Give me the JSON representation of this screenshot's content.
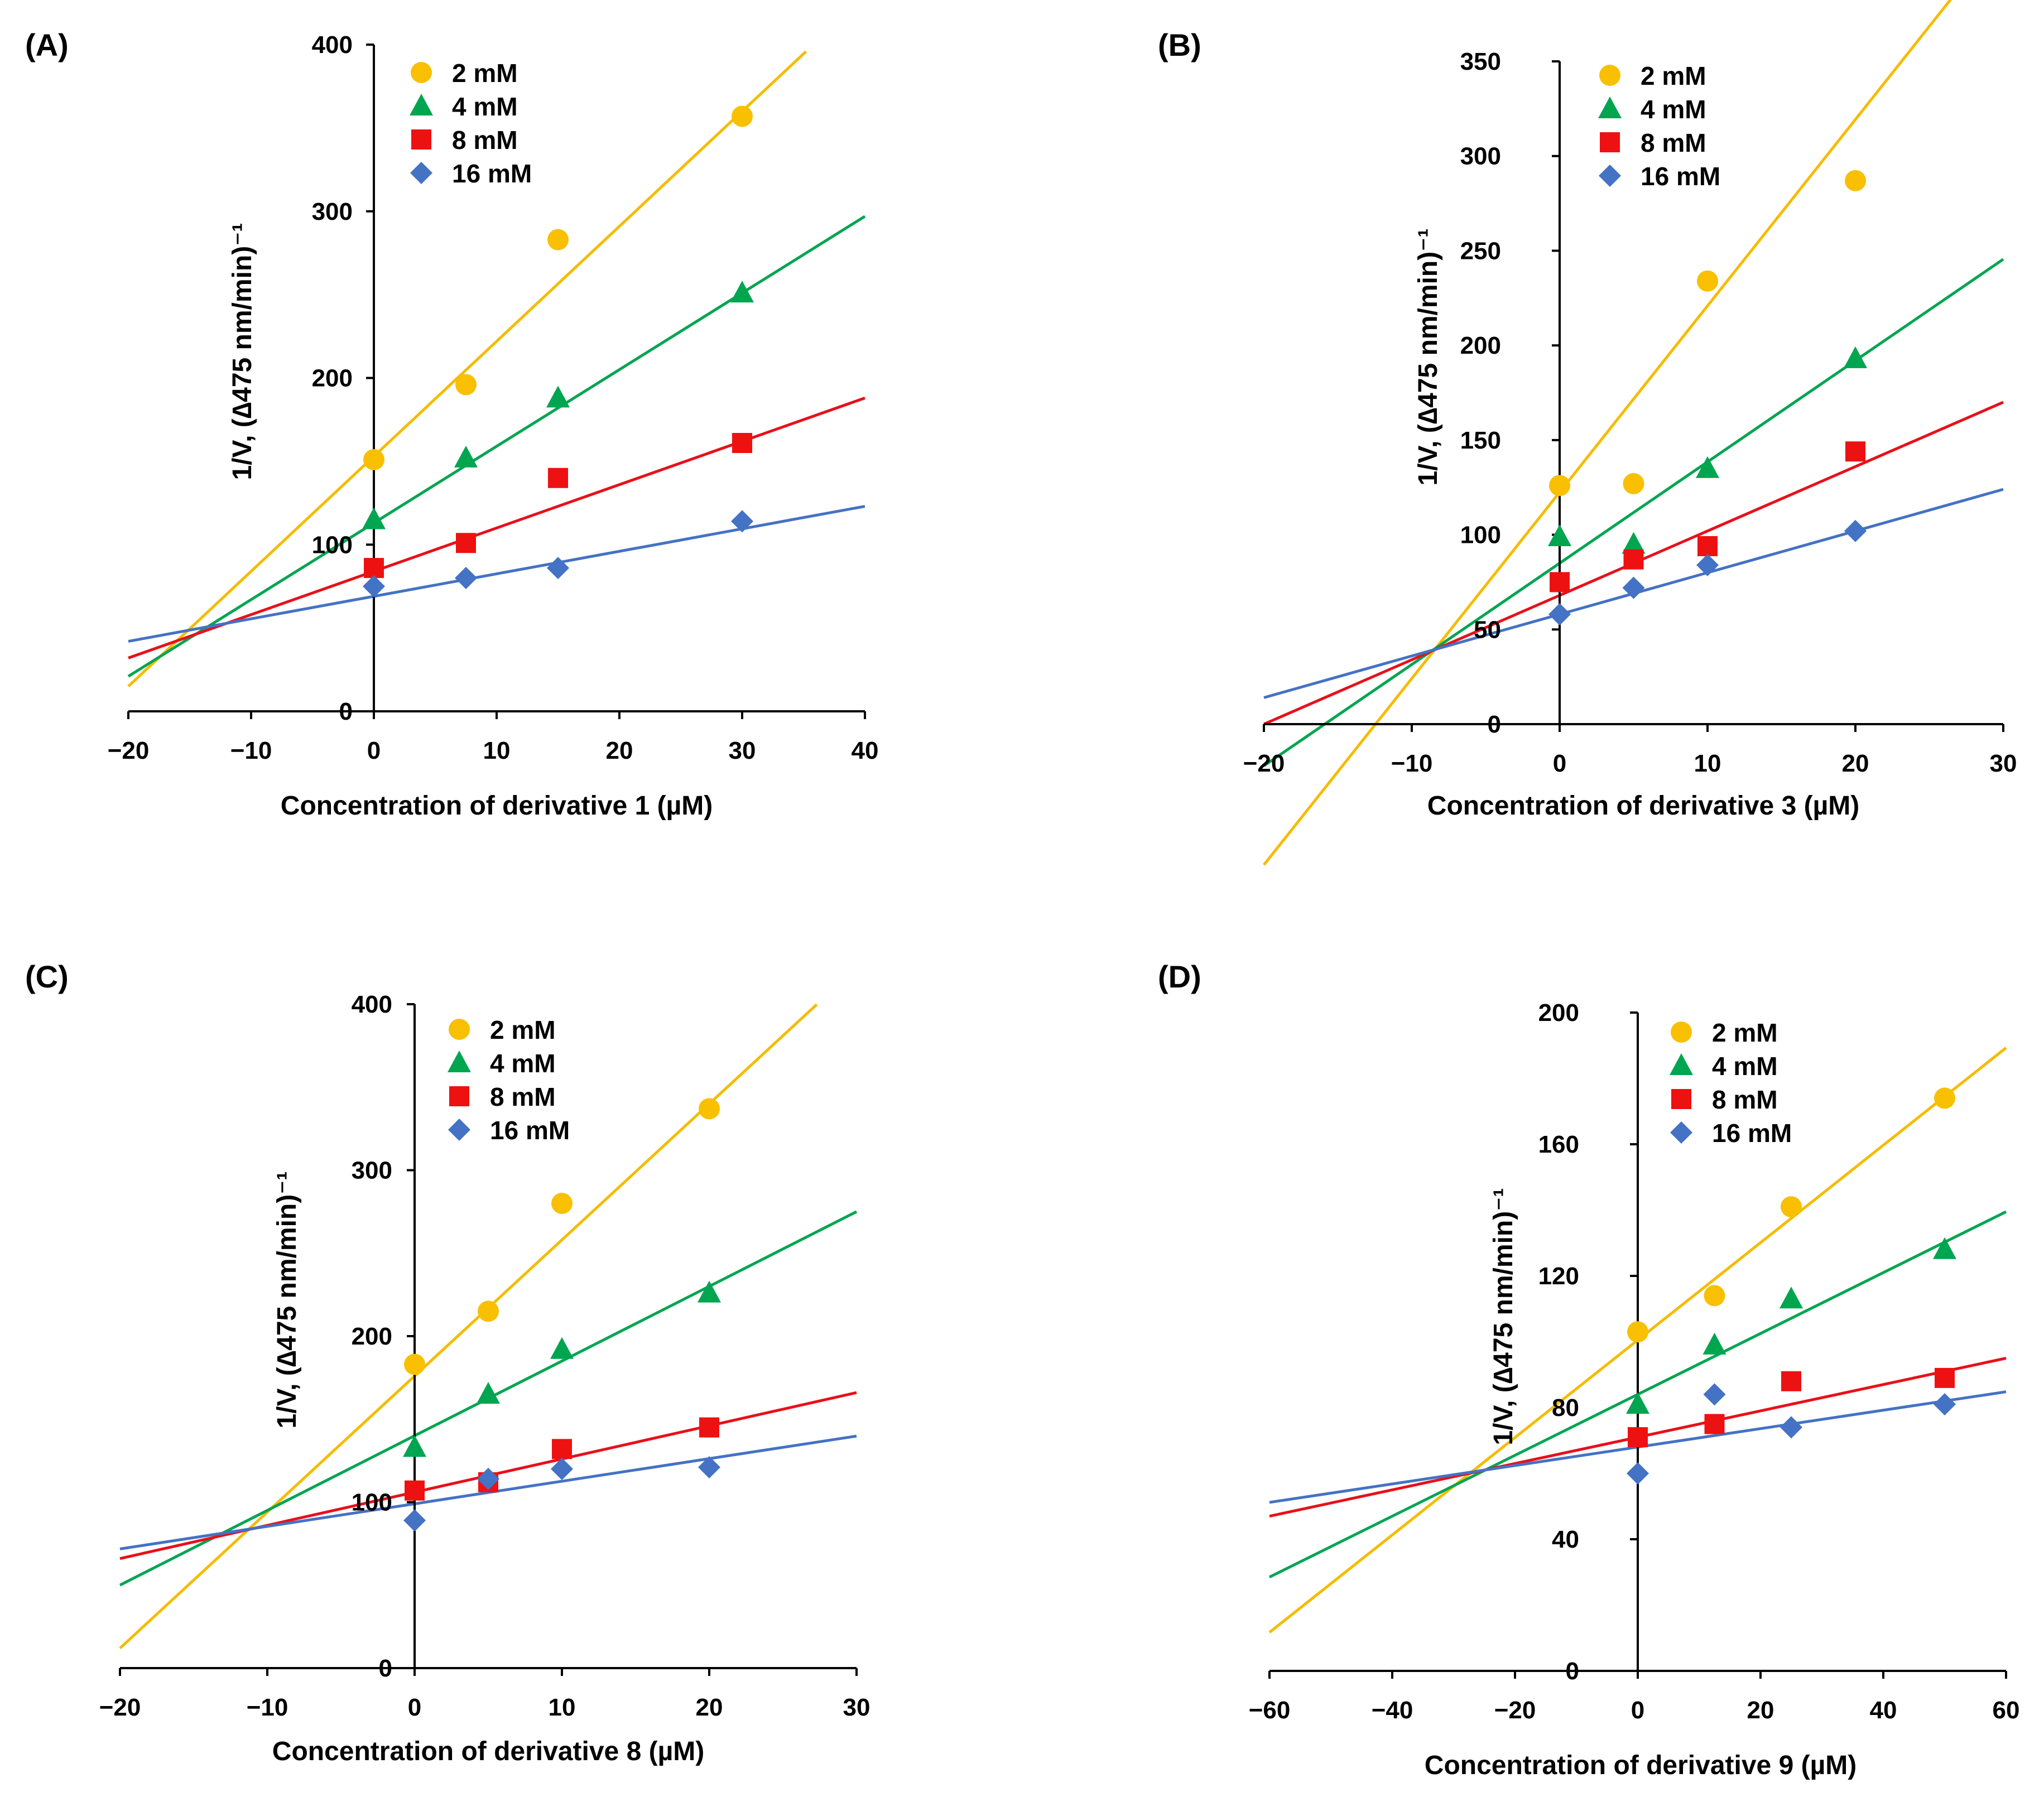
{
  "figure": {
    "panels": [
      {
        "id": "A",
        "label": "(A)"
      },
      {
        "id": "B",
        "label": "(B)"
      },
      {
        "id": "C",
        "label": "(C)"
      },
      {
        "id": "D",
        "label": "(D)"
      }
    ]
  },
  "colors": {
    "2 mM": "#F5BC00",
    "4 mM": "#00A550",
    "8 mM": "#E8101A",
    "16 mM": "#4472C4",
    "marker_2mM": "#F8C000",
    "marker_4mM": "#00A550",
    "marker_8mM": "#EE1111",
    "marker_16mM": "#4472C4",
    "axis": "#000000"
  },
  "chart_data": [
    {
      "panel": "(A)",
      "type": "scatter",
      "title": "",
      "xlabel": "Concentration of derivative 1 (µM)",
      "ylabel": "1/V, (∆475 nm/min)⁻¹",
      "xlim": [
        -20,
        40
      ],
      "ylim": [
        0,
        400
      ],
      "xticks": [
        -20,
        -10,
        0,
        10,
        20,
        30,
        40
      ],
      "xtick_labels": [
        "−20",
        "−10",
        "0",
        "10",
        "20",
        "30",
        "40"
      ],
      "yticks": [
        0,
        100,
        200,
        300,
        400
      ],
      "ytick_labels": [
        "0",
        "100",
        "200",
        "300",
        "400"
      ],
      "grid": false,
      "legend": "top-left",
      "series": [
        {
          "name": "2 mM",
          "marker": "circle",
          "x": [
            0,
            7.5,
            15,
            30
          ],
          "y": [
            151,
            196,
            283,
            357
          ],
          "fit": {
            "slope": 6.9,
            "intercept": 153,
            "x_end": 35.2
          }
        },
        {
          "name": "4 mM",
          "marker": "triangle",
          "x": [
            0,
            7.5,
            15,
            30
          ],
          "y": [
            115,
            152,
            188,
            251
          ],
          "fit": {
            "slope": 4.6,
            "intercept": 113,
            "x_end": 40
          }
        },
        {
          "name": "8 mM",
          "marker": "square",
          "x": [
            0,
            7.5,
            15,
            30
          ],
          "y": [
            86,
            101,
            140,
            161
          ],
          "fit": {
            "slope": 2.6,
            "intercept": 84,
            "x_end": 40
          }
        },
        {
          "name": "16 mM",
          "marker": "diamond",
          "x": [
            0,
            7.5,
            15,
            30
          ],
          "y": [
            75,
            80,
            86,
            114
          ],
          "fit": {
            "slope": 1.35,
            "intercept": 69,
            "x_end": 40
          }
        }
      ]
    },
    {
      "panel": "(B)",
      "type": "scatter",
      "title": "",
      "xlabel": "Concentration of derivative 3 (µM)",
      "ylabel": "1/V, (∆475 nm/min)⁻¹",
      "xlim": [
        -20,
        30
      ],
      "ylim": [
        0,
        350
      ],
      "xticks": [
        -20,
        -10,
        0,
        10,
        20,
        30
      ],
      "xtick_labels": [
        "−20",
        "−10",
        "0",
        "10",
        "20",
        "30"
      ],
      "yticks": [
        0,
        50,
        100,
        150,
        200,
        250,
        300,
        350
      ],
      "ytick_labels": [
        "0",
        "50",
        "100",
        "150",
        "200",
        "250",
        "300",
        "350"
      ],
      "grid": false,
      "legend": "top-left",
      "series": [
        {
          "name": "2 mM",
          "marker": "circle",
          "x": [
            0,
            5,
            10,
            20
          ],
          "y": [
            126,
            127,
            234,
            287
          ],
          "fit": {
            "slope": 9.84,
            "intercept": 122.5,
            "x_end": 27
          }
        },
        {
          "name": "4 mM",
          "marker": "triangle",
          "x": [
            0,
            5,
            10,
            20
          ],
          "y": [
            99,
            95,
            135,
            193
          ],
          "fit": {
            "slope": 5.35,
            "intercept": 85,
            "x_end": 30
          }
        },
        {
          "name": "8 mM",
          "marker": "square",
          "x": [
            0,
            5,
            10,
            20
          ],
          "y": [
            75,
            87,
            94,
            144
          ],
          "fit": {
            "slope": 3.4,
            "intercept": 68,
            "x_end": 30
          }
        },
        {
          "name": "16 mM",
          "marker": "diamond",
          "x": [
            0,
            5,
            10,
            20
          ],
          "y": [
            58,
            72,
            84,
            102
          ],
          "fit": {
            "slope": 2.2,
            "intercept": 58,
            "x_end": 30
          }
        }
      ]
    },
    {
      "panel": "(C)",
      "type": "scatter",
      "title": "",
      "xlabel": "Concentration of derivative 8 (µM)",
      "ylabel": "1/V, (∆475 nm/min)⁻¹",
      "xlim": [
        -20,
        30
      ],
      "ylim": [
        0,
        400
      ],
      "xticks": [
        -20,
        -10,
        0,
        10,
        20,
        30
      ],
      "xtick_labels": [
        "−20",
        "−10",
        "0",
        "10",
        "20",
        "30"
      ],
      "yticks": [
        0,
        100,
        200,
        300,
        400
      ],
      "ytick_labels": [
        "0",
        "100",
        "200",
        "300",
        "400"
      ],
      "grid": false,
      "legend": "top-left",
      "series": [
        {
          "name": "2 mM",
          "marker": "circle",
          "x": [
            0,
            5,
            10,
            20
          ],
          "y": [
            183,
            215,
            280,
            337
          ],
          "fit": {
            "slope": 8.2,
            "intercept": 176,
            "x_end": 27.3
          }
        },
        {
          "name": "4 mM",
          "marker": "triangle",
          "x": [
            0,
            5,
            10,
            20
          ],
          "y": [
            133,
            165,
            192,
            226
          ],
          "fit": {
            "slope": 4.5,
            "intercept": 140,
            "x_end": 30
          }
        },
        {
          "name": "8 mM",
          "marker": "square",
          "x": [
            0,
            5,
            10,
            20
          ],
          "y": [
            107,
            112,
            132,
            145
          ],
          "fit": {
            "slope": 2.0,
            "intercept": 106,
            "x_end": 30
          }
        },
        {
          "name": "16 mM",
          "marker": "diamond",
          "x": [
            0,
            5,
            10,
            20
          ],
          "y": [
            89,
            114,
            120,
            121
          ],
          "fit": {
            "slope": 1.36,
            "intercept": 99,
            "x_end": 30
          }
        }
      ]
    },
    {
      "panel": "(D)",
      "type": "scatter",
      "title": "",
      "xlabel": "Concentration of derivative 9 (µM)",
      "ylabel": "1/V, (∆475 nm/min)⁻¹",
      "xlim": [
        -60,
        60
      ],
      "ylim": [
        0,
        200
      ],
      "xticks": [
        -60,
        -40,
        -20,
        0,
        20,
        40,
        60
      ],
      "xtick_labels": [
        "−60",
        "−40",
        "−20",
        "0",
        "20",
        "40",
        "60"
      ],
      "yticks": [
        0,
        40,
        80,
        120,
        160,
        200
      ],
      "ytick_labels": [
        "0",
        "40",
        "80",
        "120",
        "160",
        "200"
      ],
      "grid": false,
      "legend": "top-left",
      "series": [
        {
          "name": "2 mM",
          "marker": "circle",
          "x": [
            0,
            12.5,
            25,
            50
          ],
          "y": [
            103,
            114,
            141,
            174
          ],
          "fit": {
            "slope": 1.48,
            "intercept": 100.5,
            "x_end": 60
          }
        },
        {
          "name": "4 mM",
          "marker": "triangle",
          "x": [
            0,
            12.5,
            25,
            50
          ],
          "y": [
            81,
            99,
            113,
            128
          ],
          "fit": {
            "slope": 0.925,
            "intercept": 84,
            "x_end": 60
          }
        },
        {
          "name": "8 mM",
          "marker": "square",
          "x": [
            0,
            12.5,
            25,
            50
          ],
          "y": [
            71,
            75,
            88,
            89
          ],
          "fit": {
            "slope": 0.4,
            "intercept": 71,
            "x_end": 60
          }
        },
        {
          "name": "16 mM",
          "marker": "diamond",
          "x": [
            0,
            12.5,
            25,
            50
          ],
          "y": [
            60,
            84,
            74,
            81
          ],
          "fit": {
            "slope": 0.28,
            "intercept": 68,
            "x_end": 60
          }
        }
      ]
    }
  ]
}
